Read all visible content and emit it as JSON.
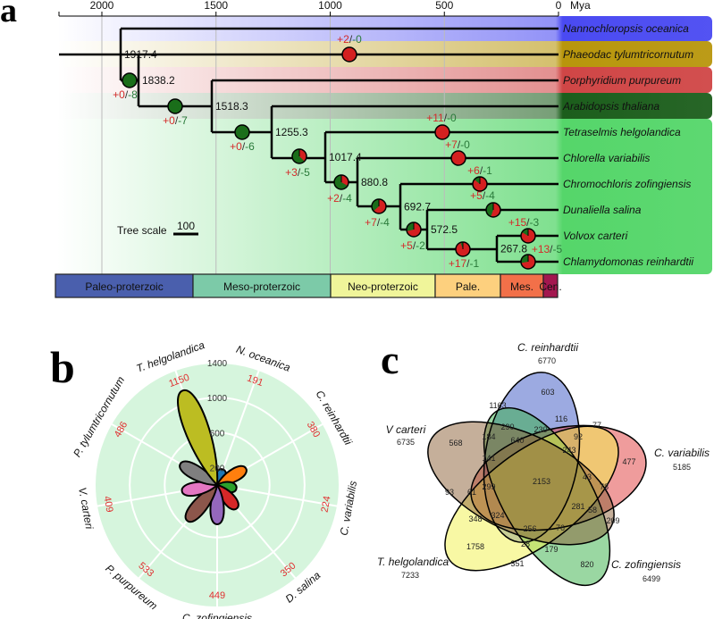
{
  "panels": {
    "a": "a",
    "b": "b",
    "c": "c"
  },
  "tree": {
    "axis_ticks": [
      "2000",
      "1500",
      "1000",
      "500",
      "0"
    ],
    "axis_unit": "Mya",
    "taxa": [
      "Nannochloropsis oceanica",
      "Phaeodac tylumtricornutum",
      "Porphyridium purpureum",
      "Arabidopsis thaliana",
      "Tetraselmis helgolandica",
      "Chlorella variabilis",
      "Chromochloris zofingiensis",
      "Dunaliella salina",
      "Volvox carteri",
      "Chlamydomonas reinhardtii"
    ],
    "band_colors": [
      "#4a4af2",
      "#b8960c",
      "#d04646",
      "#1c5e1c",
      "#55d66a"
    ],
    "node_ages": [
      "1917.4",
      "1838.2",
      "1518.3",
      "1255.3",
      "1017.4",
      "880.8",
      "692.7",
      "572.5",
      "267.8"
    ],
    "branch_changes": [
      {
        "gain": "+0",
        "loss": "-8"
      },
      {
        "gain": "+0",
        "loss": "-7"
      },
      {
        "gain": "+0",
        "loss": "-6"
      },
      {
        "gain": "+3",
        "loss": "-5"
      },
      {
        "gain": "+2",
        "loss": "-4"
      },
      {
        "gain": "+7",
        "loss": "-4"
      },
      {
        "gain": "+5",
        "loss": "-2"
      },
      {
        "gain": "+17",
        "loss": "-1"
      },
      {
        "gain": "+2",
        "loss": "-0"
      },
      {
        "gain": "+11",
        "loss": "-0"
      },
      {
        "gain": "+7",
        "loss": "-0"
      },
      {
        "gain": "+6",
        "loss": "-1"
      },
      {
        "gain": "+5",
        "loss": "-4"
      },
      {
        "gain": "+15",
        "loss": "-3"
      },
      {
        "gain": "+13",
        "loss": "-5"
      }
    ],
    "gain_color": "#d42020",
    "loss_color": "#1a6e1a",
    "tree_scale_label": "Tree scale",
    "tree_scale_value": "100",
    "eras": [
      {
        "label": "Paleo-proterzoic",
        "color": "#4a5fad"
      },
      {
        "label": "Meso-proterzoic",
        "color": "#7ccaa8"
      },
      {
        "label": "Neo-proterzoic",
        "color": "#f0f59a"
      },
      {
        "label": "Pale.",
        "color": "#fdd07e"
      },
      {
        "label": "Mes.",
        "color": "#f27049"
      },
      {
        "label": "Cen.",
        "color": "#a3174f"
      }
    ]
  },
  "chart_data": {
    "type": "polar-bar",
    "categories": [
      "N. oceanica",
      "C. reinhardtii",
      "C. variabilis",
      "D. salina",
      "C. zofingiensis",
      "P. purpureum",
      "V. carteri",
      "P. tylumtricornutum",
      "T. helgolandica"
    ],
    "values": [
      191,
      380,
      224,
      350,
      449,
      533,
      409,
      486,
      1150
    ],
    "value_labels": [
      "191",
      "380",
      "224",
      "350",
      "449",
      "533",
      "409",
      "486",
      "1150"
    ],
    "colors": [
      "#1f77b4",
      "#ff7f0e",
      "#2ca02c",
      "#d62728",
      "#9467bd",
      "#8c564b",
      "#e377c2",
      "#7f7f7f",
      "#bcbd22"
    ],
    "radial_ticks": [
      "200",
      "600",
      "1000",
      "1400"
    ],
    "rlim": [
      0,
      1400
    ],
    "background": "#d6f5dd",
    "value_label_color": "#e03030"
  },
  "venn": {
    "sets": [
      {
        "name": "C. reinhardtii",
        "total": "6770",
        "color": "#3a55c4"
      },
      {
        "name": "C. variabilis",
        "total": "5185",
        "color": "#e03a3a"
      },
      {
        "name": "C. zofingiensis",
        "total": "6499",
        "color": "#35b045"
      },
      {
        "name": "T. helgolandica",
        "total": "7233",
        "color": "#f2f24a"
      },
      {
        "name": "V carteri",
        "total": "6735",
        "color": "#8b6035"
      }
    ],
    "regions": [
      "603",
      "1163",
      "116",
      "77",
      "290",
      "230",
      "92",
      "184",
      "640",
      "568",
      "243",
      "477",
      "141",
      "2153",
      "43",
      "78",
      "93",
      "61",
      "299",
      "281",
      "58",
      "209",
      "348",
      "324",
      "256",
      "76",
      "28",
      "179",
      "1758",
      "351",
      "820"
    ]
  }
}
